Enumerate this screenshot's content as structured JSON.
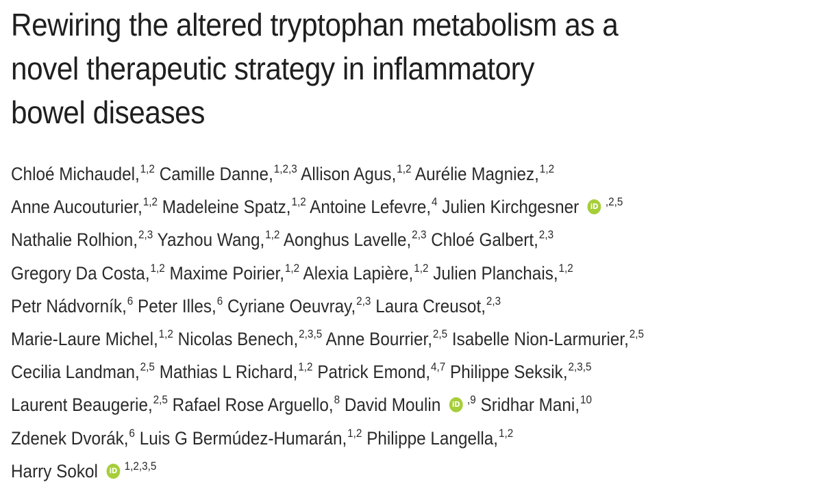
{
  "title_lines": [
    "Rewiring the altered tryptophan metabolism as a",
    "novel therapeutic strategy in inflammatory",
    "bowel diseases"
  ],
  "icons": {
    "orcid": "orcid-icon"
  },
  "orcid_colour": "#a6ce39",
  "author_lines": [
    [
      {
        "name": "Chloé Michaudel,",
        "aff": "1,2"
      },
      {
        "name": "Camille Danne,",
        "aff": "1,2,3"
      },
      {
        "name": "Allison Agus,",
        "aff": "1,2"
      },
      {
        "name": "Aurélie Magniez,",
        "aff": "1,2"
      }
    ],
    [
      {
        "name": "Anne Aucouturier,",
        "aff": "1,2"
      },
      {
        "name": "Madeleine Spatz,",
        "aff": "1,2"
      },
      {
        "name": "Antoine Lefevre,",
        "aff": "4"
      },
      {
        "name": "Julien Kirchgesner",
        "orcid": true,
        "aff": ",2,5"
      }
    ],
    [
      {
        "name": "Nathalie Rolhion,",
        "aff": "2,3"
      },
      {
        "name": "Yazhou Wang,",
        "aff": "1,2"
      },
      {
        "name": "Aonghus Lavelle,",
        "aff": "2,3"
      },
      {
        "name": "Chloé Galbert,",
        "aff": "2,3"
      }
    ],
    [
      {
        "name": "Gregory Da Costa,",
        "aff": "1,2"
      },
      {
        "name": "Maxime Poirier,",
        "aff": "1,2"
      },
      {
        "name": "Alexia Lapière,",
        "aff": "1,2"
      },
      {
        "name": "Julien Planchais,",
        "aff": "1,2"
      }
    ],
    [
      {
        "name": "Petr Nádvorník,",
        "aff": "6"
      },
      {
        "name": "Peter Illes,",
        "aff": "6"
      },
      {
        "name": "Cyriane Oeuvray,",
        "aff": "2,3"
      },
      {
        "name": "Laura Creusot,",
        "aff": "2,3"
      }
    ],
    [
      {
        "name": "Marie-Laure Michel,",
        "aff": "1,2"
      },
      {
        "name": "Nicolas Benech,",
        "aff": "2,3,5"
      },
      {
        "name": "Anne Bourrier,",
        "aff": "2,5"
      },
      {
        "name": "Isabelle Nion-Larmurier,",
        "aff": "2,5"
      }
    ],
    [
      {
        "name": "Cecilia Landman,",
        "aff": "2,5"
      },
      {
        "name": "Mathias L Richard,",
        "aff": "1,2"
      },
      {
        "name": "Patrick Emond,",
        "aff": "4,7"
      },
      {
        "name": "Philippe Seksik,",
        "aff": "2,3,5"
      }
    ],
    [
      {
        "name": "Laurent Beaugerie,",
        "aff": "2,5"
      },
      {
        "name": "Rafael Rose Arguello,",
        "aff": "8"
      },
      {
        "name": "David Moulin",
        "orcid": true,
        "aff": ",9"
      },
      {
        "name": "Sridhar Mani,",
        "aff": "10"
      }
    ],
    [
      {
        "name": "Zdenek Dvorák,",
        "aff": "6"
      },
      {
        "name": "Luis G Bermúdez-Humarán,",
        "aff": "1,2"
      },
      {
        "name": "Philippe Langella,",
        "aff": "1,2"
      }
    ],
    [
      {
        "name": "Harry Sokol",
        "orcid": true,
        "aff": "1,2,3,5"
      }
    ]
  ]
}
